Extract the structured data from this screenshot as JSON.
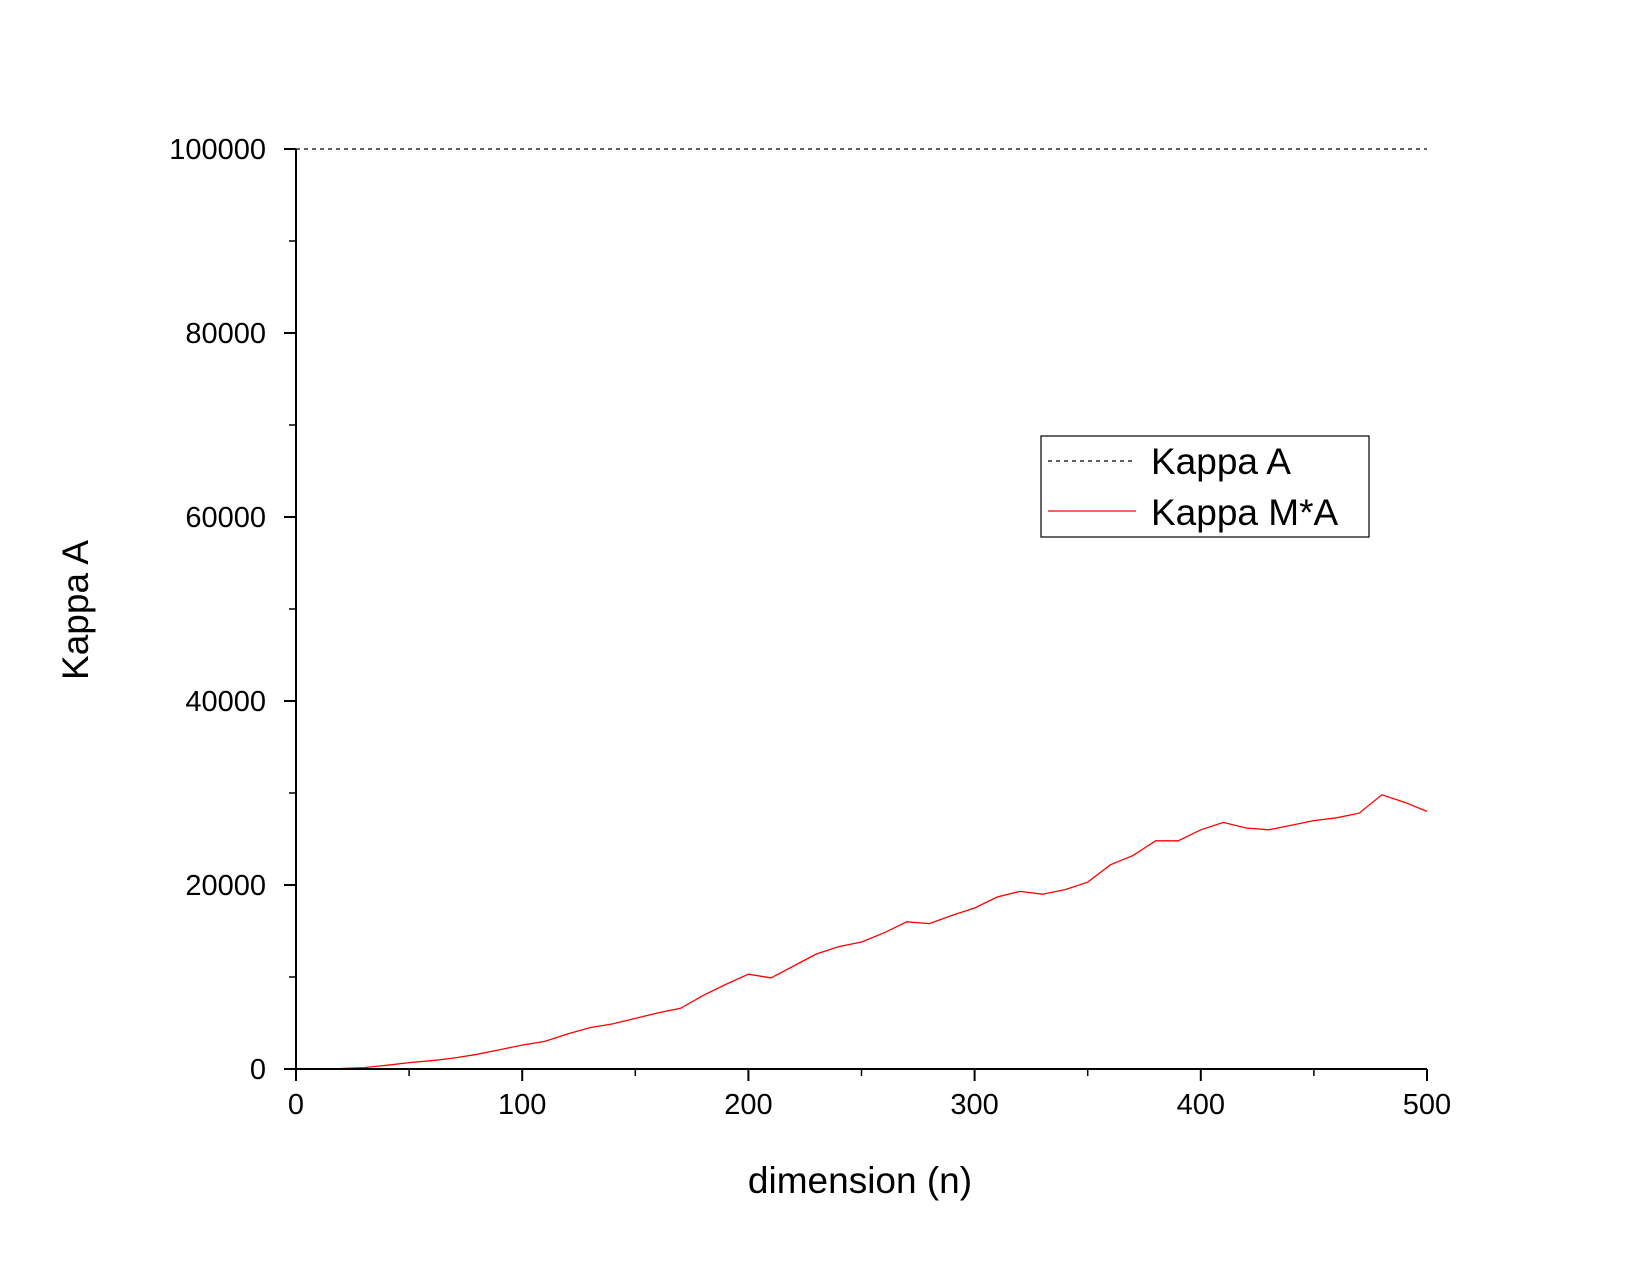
{
  "chart_data": {
    "type": "line",
    "title": "",
    "xlabel": "dimension (n)",
    "ylabel": "Kappa A",
    "xlim": [
      0,
      500
    ],
    "ylim": [
      0,
      100000
    ],
    "x_ticks": [
      0,
      100,
      200,
      300,
      400,
      500
    ],
    "y_ticks": [
      0,
      20000,
      40000,
      60000,
      80000,
      100000
    ],
    "x_tick_labels": [
      "0",
      "100",
      "200",
      "300",
      "400",
      "500"
    ],
    "y_tick_labels": [
      "0",
      "20000",
      "40000",
      "60000",
      "80000",
      "100000"
    ],
    "grid": false,
    "legend": {
      "position": "right-middle"
    },
    "series": [
      {
        "name": "Kappa A",
        "style": "dashed",
        "color": "#000000",
        "x": [
          0,
          500
        ],
        "values": [
          100000,
          100000
        ]
      },
      {
        "name": "Kappa M*A",
        "style": "solid",
        "color": "#ff0000",
        "x": [
          0,
          10,
          20,
          30,
          40,
          50,
          60,
          70,
          80,
          90,
          100,
          110,
          120,
          130,
          140,
          150,
          160,
          170,
          180,
          190,
          200,
          210,
          220,
          230,
          240,
          250,
          260,
          270,
          280,
          290,
          300,
          310,
          320,
          330,
          340,
          350,
          360,
          370,
          380,
          390,
          400,
          410,
          420,
          430,
          440,
          450,
          460,
          470,
          480,
          490,
          500
        ],
        "values": [
          0,
          20,
          50,
          150,
          400,
          700,
          900,
          1200,
          1600,
          2100,
          2600,
          3000,
          3800,
          4500,
          4900,
          5500,
          6100,
          6600,
          8000,
          9200,
          10300,
          9900,
          11200,
          12500,
          13300,
          13800,
          14800,
          16000,
          15800,
          16700,
          17500,
          18700,
          19300,
          19000,
          19500,
          20300,
          22200,
          23200,
          24800,
          24800,
          26000,
          26800,
          26200,
          26000,
          26500,
          27000,
          27300,
          27800,
          29800,
          29000,
          28000
        ]
      }
    ]
  }
}
